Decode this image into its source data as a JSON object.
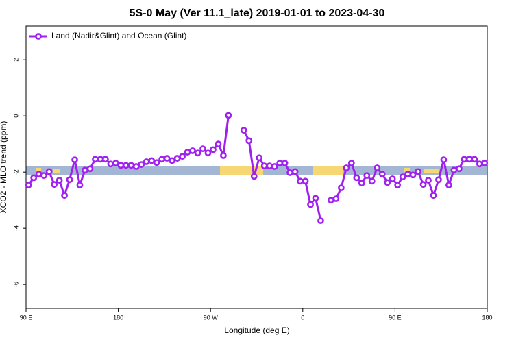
{
  "chart_data": {
    "type": "line",
    "title": "5S-0 May (Ver 11.1_late)   2019-01-01 to 2023-04-30",
    "x_label": "Longitude (deg E)",
    "y_label": "XCO2 - MLO trend (ppm)",
    "x": [
      92.5,
      97.5,
      102.5,
      107.5,
      112.5,
      117.5,
      122.5,
      127.5,
      132.5,
      137.5,
      142.5,
      147.5,
      152.5,
      157.5,
      162.5,
      167.5,
      172.5,
      177.5,
      182.5,
      187.5,
      192.5,
      197.5,
      202.5,
      207.5,
      212.5,
      217.5,
      222.5,
      227.5,
      232.5,
      237.5,
      242.5,
      247.5,
      252.5,
      257.5,
      262.5,
      267.5,
      272.5,
      277.5,
      282.5,
      287.5,
      292.5,
      297.5,
      302.5,
      307.5,
      312.5,
      317.5,
      322.5,
      327.5,
      332.5,
      337.5,
      342.5,
      347.5,
      352.5,
      357.5,
      362.5,
      367.5,
      372.5,
      377.5,
      382.5,
      387.5,
      392.5,
      397.5,
      402.5,
      407.5,
      412.5,
      417.5,
      422.5,
      427.5,
      432.5,
      437.5,
      442.5,
      447.5,
      452.5,
      457.5,
      462.5,
      467.5,
      472.5,
      477.5,
      482.5,
      487.5,
      492.5,
      497.5,
      502.5,
      507.5,
      512.5,
      517.5,
      522.5,
      527.5,
      532.5,
      537.5
    ],
    "series": [
      {
        "name": "Land (Nadir&Glint) and Ocean (Glint)",
        "color": "#a020f0",
        "values": [
          -2.46,
          -2.2,
          -2.07,
          -2.12,
          -1.98,
          -2.44,
          -2.29,
          -2.83,
          -2.27,
          -1.56,
          -2.46,
          -1.93,
          -1.88,
          -1.54,
          -1.54,
          -1.54,
          -1.71,
          -1.68,
          -1.76,
          -1.76,
          -1.76,
          -1.8,
          -1.73,
          -1.63,
          -1.59,
          -1.66,
          -1.54,
          -1.51,
          -1.59,
          -1.51,
          -1.44,
          -1.29,
          -1.24,
          -1.32,
          -1.17,
          -1.32,
          -1.2,
          -1.0,
          -1.41,
          0.02,
          null,
          null,
          -0.51,
          -0.88,
          -2.15,
          -1.49,
          -1.78,
          -1.78,
          -1.8,
          -1.68,
          -1.68,
          -2.02,
          -1.98,
          -2.32,
          -2.32,
          -3.15,
          -2.93,
          -3.73,
          null,
          -3.0,
          -2.95,
          -2.56,
          -1.85,
          -1.68,
          -2.2,
          -2.39,
          -2.12,
          -2.32,
          -1.85,
          -2.07,
          -2.37,
          -2.24,
          -2.46,
          -2.17,
          -2.07,
          -2.1,
          -1.98,
          -2.44,
          -2.29,
          -2.83,
          -2.27,
          -1.56,
          -2.46,
          -1.93,
          -1.88,
          -1.54,
          -1.54,
          -1.54,
          -1.71,
          -1.68
        ]
      }
    ],
    "xlim": [
      90,
      540
    ],
    "xticks": [
      {
        "value": 90,
        "label": "90 E"
      },
      {
        "value": 180,
        "label": "180"
      },
      {
        "value": 270,
        "label": "90 W"
      },
      {
        "value": 360,
        "label": "0"
      },
      {
        "value": 450,
        "label": "90 E"
      },
      {
        "value": 540,
        "label": "180"
      }
    ],
    "ylim": [
      -6.85,
      3.2
    ],
    "yticks": [
      2,
      0,
      -2,
      -4,
      -6
    ],
    "legend": "top-left"
  }
}
